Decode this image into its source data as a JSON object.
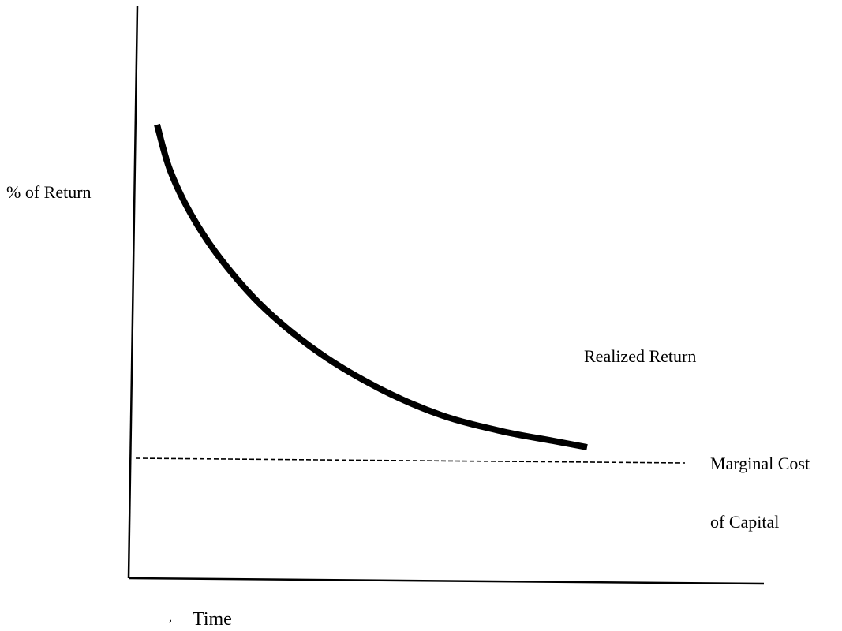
{
  "chart_data": {
    "type": "line",
    "title": "",
    "xlabel": "Time",
    "ylabel": "% of Return",
    "grid": false,
    "legend": "none",
    "ticks": "none",
    "series": [
      {
        "name": "Realized Return",
        "style": "solid-thick",
        "color": "#000000",
        "shape": "decreasing convex curve approaching the marginal cost level",
        "x": [
          0.0,
          0.03,
          0.08,
          0.15,
          0.25,
          0.38,
          0.52,
          0.66,
          0.8,
          0.92,
          1.0
        ],
        "y": [
          1.0,
          0.86,
          0.72,
          0.58,
          0.43,
          0.29,
          0.18,
          0.1,
          0.05,
          0.02,
          0.0
        ]
      },
      {
        "name": "Marginal Cost of Capital",
        "style": "dashed",
        "color": "#000000",
        "shape": "flat horizontal line below the end of the realized return curve"
      }
    ],
    "annotations": [
      {
        "id": "realized-return",
        "text": "Realized Return"
      },
      {
        "id": "mcc-line1",
        "text": "Marginal Cost"
      },
      {
        "id": "mcc-line2",
        "text": "of Capital"
      },
      {
        "id": "stray-mark",
        "text": ","
      }
    ]
  }
}
